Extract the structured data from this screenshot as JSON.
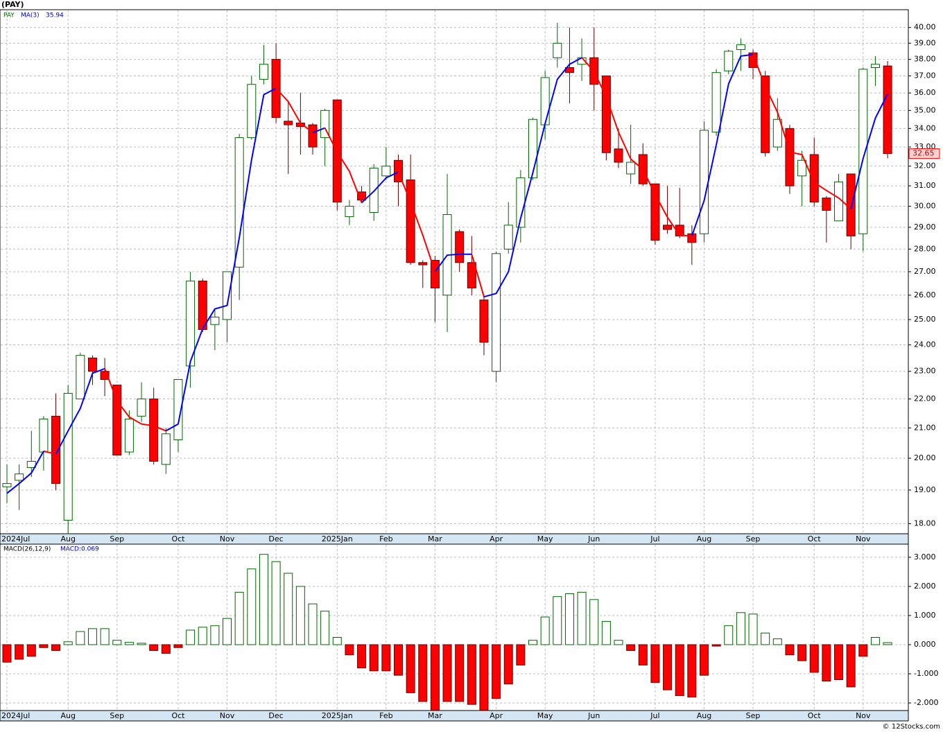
{
  "chart_data": [
    {
      "type": "candlestick",
      "title": "(PAY)",
      "symbol": "PAY",
      "log_scale": true,
      "grid": true,
      "categories": [
        "2024Jul",
        null,
        null,
        null,
        null,
        "Aug",
        null,
        null,
        null,
        "Sep",
        null,
        null,
        null,
        null,
        "Oct",
        null,
        null,
        null,
        "Nov",
        null,
        null,
        null,
        "Dec",
        null,
        null,
        null,
        null,
        "2025Jan",
        null,
        null,
        null,
        "Feb",
        null,
        null,
        null,
        "Mar",
        null,
        null,
        null,
        null,
        "Apr",
        null,
        null,
        null,
        "May",
        null,
        null,
        null,
        "Jun",
        null,
        null,
        null,
        null,
        "Jul",
        null,
        null,
        null,
        "Aug",
        null,
        null,
        null,
        "Sep",
        null,
        null,
        null,
        null,
        "Oct",
        null,
        null,
        null,
        "Nov",
        null,
        null
      ],
      "open": [
        19.1,
        19.3,
        19.7,
        20.2,
        21.4,
        18.1,
        22.0,
        23.5,
        23.0,
        22.5,
        20.2,
        21.4,
        22.0,
        19.8,
        20.6,
        23.2,
        26.6,
        24.8,
        25.0,
        27.2,
        33.5,
        36.8,
        38.0,
        34.4,
        34.3,
        34.2,
        33.5,
        35.6,
        29.5,
        30.7,
        29.7,
        31.5,
        32.3,
        31.3,
        27.4,
        27.5,
        26.0,
        28.8,
        27.4,
        25.8,
        23.0,
        28.0,
        29.0,
        31.4,
        34.2,
        38.1,
        37.5,
        37.7,
        38.1,
        37.0,
        32.9,
        31.6,
        32.6,
        31.1,
        29.1,
        29.1,
        28.7,
        28.7,
        33.8,
        37.3,
        38.6,
        38.4,
        37.0,
        33.0,
        34.0,
        31.5,
        32.6,
        30.4,
        29.3,
        31.6,
        28.7,
        37.5,
        37.6
      ],
      "high": [
        19.8,
        19.8,
        20.9,
        21.4,
        22.2,
        22.5,
        23.7,
        23.6,
        23.5,
        22.5,
        21.6,
        22.6,
        22.4,
        21.0,
        22.7,
        27.0,
        26.7,
        25.4,
        27.0,
        33.7,
        37.0,
        38.9,
        39.0,
        35.5,
        36.0,
        34.3,
        35.1,
        35.6,
        30.3,
        31.0,
        32.1,
        33.0,
        32.6,
        32.6,
        27.5,
        27.7,
        31.6,
        28.9,
        28.6,
        26.0,
        27.9,
        30.2,
        31.8,
        34.6,
        37.3,
        40.3,
        40.0,
        39.3,
        40.0,
        37.0,
        34.0,
        34.2,
        33.2,
        31.1,
        31.0,
        30.9,
        29.1,
        34.4,
        37.4,
        38.6,
        39.3,
        38.6,
        37.3,
        35.7,
        34.2,
        32.8,
        33.5,
        30.5,
        31.6,
        31.6,
        37.5,
        38.2,
        37.9
      ],
      "low": [
        18.6,
        18.4,
        19.4,
        19.6,
        19.0,
        17.7,
        22.0,
        22.5,
        22.1,
        20.1,
        20.1,
        21.2,
        19.8,
        19.5,
        20.2,
        22.4,
        24.5,
        23.8,
        24.1,
        25.8,
        33.4,
        36.5,
        34.3,
        31.6,
        32.6,
        32.6,
        32.0,
        29.8,
        29.1,
        30.2,
        29.3,
        31.3,
        30.0,
        27.3,
        26.3,
        24.9,
        24.5,
        27.0,
        26.0,
        23.6,
        22.6,
        27.8,
        28.3,
        31.3,
        33.4,
        37.5,
        35.4,
        36.7,
        35.0,
        32.3,
        31.9,
        31.1,
        31.0,
        28.2,
        28.7,
        28.5,
        27.3,
        28.3,
        33.6,
        37.1,
        37.3,
        36.8,
        32.5,
        32.8,
        30.6,
        30.0,
        30.0,
        28.3,
        29.3,
        28.0,
        27.9,
        36.4,
        32.4
      ],
      "close": [
        19.2,
        19.5,
        19.9,
        21.3,
        19.2,
        22.2,
        23.6,
        23.0,
        22.7,
        20.1,
        21.3,
        22.0,
        19.9,
        20.8,
        22.7,
        26.6,
        24.6,
        25.1,
        27.0,
        33.5,
        36.5,
        37.7,
        34.6,
        34.2,
        34.1,
        33.0,
        35.0,
        30.2,
        30.0,
        30.3,
        31.9,
        32.0,
        31.2,
        27.4,
        27.3,
        26.3,
        29.6,
        27.4,
        26.3,
        24.1,
        27.8,
        29.1,
        31.4,
        34.5,
        36.9,
        39.0,
        37.2,
        38.1,
        36.5,
        32.7,
        32.2,
        32.2,
        31.1,
        28.4,
        28.9,
        28.6,
        28.3,
        33.9,
        37.2,
        38.5,
        38.9,
        37.5,
        32.7,
        34.5,
        31.0,
        32.3,
        30.2,
        29.8,
        31.2,
        28.6,
        37.4,
        37.7,
        32.65
      ],
      "ma": {
        "name": "MA(3)",
        "up_color": "#0000ff",
        "down_color": "#ff0000",
        "values": [
          18.9,
          19.2,
          19.53,
          20.23,
          20.13,
          20.9,
          21.67,
          22.93,
          23.1,
          21.93,
          21.37,
          21.13,
          21.07,
          20.9,
          21.13,
          23.37,
          24.63,
          25.43,
          25.57,
          28.53,
          32.33,
          35.9,
          36.27,
          35.5,
          34.3,
          33.77,
          34.03,
          32.73,
          31.73,
          30.17,
          30.73,
          31.4,
          31.7,
          30.2,
          28.63,
          27.0,
          27.73,
          27.77,
          27.77,
          25.93,
          26.07,
          27.0,
          29.43,
          31.67,
          34.27,
          36.8,
          37.7,
          38.1,
          37.27,
          35.77,
          33.8,
          32.37,
          31.83,
          30.57,
          29.47,
          28.63,
          28.6,
          30.27,
          33.13,
          36.53,
          38.2,
          38.3,
          36.37,
          34.9,
          32.73,
          32.6,
          31.17,
          30.77,
          30.4,
          29.87,
          32.4,
          34.57,
          35.94
        ]
      },
      "up_fill": "#ffffff",
      "up_stroke": "#006400",
      "down_fill": "#ff0000",
      "down_stroke": "#660000",
      "ylim": [
        17.71,
        41.16
      ],
      "yticks": [
        {
          "value": 18,
          "label": "18.00"
        },
        {
          "value": 19,
          "label": "19.00"
        },
        {
          "value": 20,
          "label": "20.00"
        },
        {
          "value": 21,
          "label": "21.00"
        },
        {
          "value": 22,
          "label": "22.00"
        },
        {
          "value": 23,
          "label": "23.00"
        },
        {
          "value": 24,
          "label": "24.00"
        },
        {
          "value": 25,
          "label": "25.00"
        },
        {
          "value": 26,
          "label": "26.00"
        },
        {
          "value": 27,
          "label": "27.00"
        },
        {
          "value": 28,
          "label": "28.00"
        },
        {
          "value": 29,
          "label": "29.00"
        },
        {
          "value": 30,
          "label": "30.00"
        },
        {
          "value": 31,
          "label": "31.00"
        },
        {
          "value": 32,
          "label": "32.00"
        },
        {
          "value": 33,
          "label": "33.00"
        },
        {
          "value": 34,
          "label": "34.00"
        },
        {
          "value": 35,
          "label": "35.00"
        },
        {
          "value": 36,
          "label": "36.00"
        },
        {
          "value": 37,
          "label": "37.00"
        },
        {
          "value": 38,
          "label": "38.00"
        },
        {
          "value": 39,
          "label": "39.00"
        },
        {
          "value": 40,
          "label": "40.00"
        }
      ]
    },
    {
      "type": "histogram",
      "indicator_label": "MACD(26,12,9)",
      "current_label": "MACD:0.069",
      "grid": true,
      "pos_fill": "#ffffff",
      "pos_stroke": "#006400",
      "neg_fill": "#ff0000",
      "neg_stroke": "#660000",
      "values": [
        -0.6,
        -0.5,
        -0.4,
        -0.1,
        -0.2,
        0.1,
        0.45,
        0.55,
        0.55,
        0.15,
        0.08,
        0.05,
        -0.2,
        -0.3,
        -0.1,
        0.5,
        0.6,
        0.65,
        0.9,
        1.8,
        2.6,
        3.1,
        2.85,
        2.45,
        2.0,
        1.4,
        1.15,
        0.25,
        -0.35,
        -0.8,
        -0.9,
        -0.9,
        -1.05,
        -1.65,
        -1.95,
        -2.25,
        -1.95,
        -1.95,
        -2.05,
        -2.25,
        -1.85,
        -1.35,
        -0.7,
        0.15,
        0.95,
        1.65,
        1.75,
        1.8,
        1.55,
        0.8,
        0.15,
        -0.2,
        -0.7,
        -1.3,
        -1.55,
        -1.75,
        -1.8,
        -1.05,
        -0.05,
        0.65,
        1.1,
        1.05,
        0.4,
        0.2,
        -0.35,
        -0.55,
        -0.95,
        -1.25,
        -1.2,
        -1.45,
        -0.4,
        0.25,
        0.069
      ],
      "ylim": [
        -2.26,
        3.45
      ],
      "yticks": [
        {
          "value": 3,
          "label": "3.000"
        },
        {
          "value": 2,
          "label": "2.000"
        },
        {
          "value": 1,
          "label": "1.000"
        },
        {
          "value": 0,
          "label": "0.000"
        },
        {
          "value": -1,
          "label": "-1.000"
        },
        {
          "value": -2,
          "label": "-2.000"
        }
      ]
    }
  ],
  "footer": "© 12Stocks.com"
}
